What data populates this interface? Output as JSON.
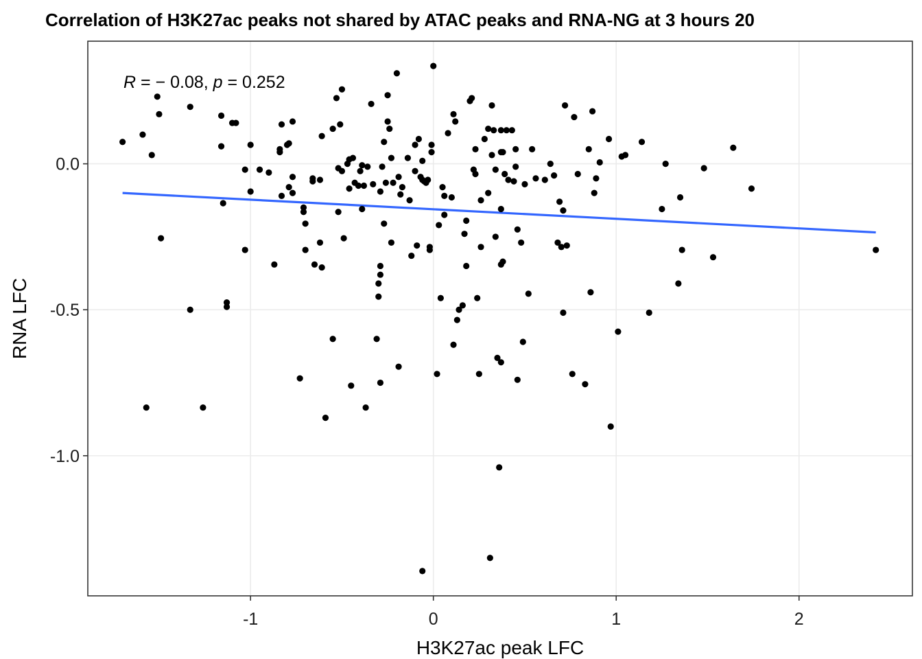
{
  "chart_data": {
    "type": "scatter",
    "title": "Correlation of H3K27ac peaks not shared by ATAC peaks and RNA-NG  at 3 hours 20",
    "xlabel": "H3K27ac peak LFC",
    "ylabel": "RNA LFC",
    "xlim": [
      -1.89,
      2.62
    ],
    "ylim": [
      -1.48,
      0.42
    ],
    "x_ticks": [
      -1,
      0,
      1,
      2
    ],
    "x_tick_labels": [
      "-1",
      "0",
      "1",
      "2"
    ],
    "y_ticks": [
      0.0,
      -0.5,
      -1.0
    ],
    "y_tick_labels": [
      "0.0",
      "-0.5",
      "-1.0"
    ],
    "grid": true,
    "annotation": {
      "r_symbol": "R",
      "r_rest": " = − 0.08, ",
      "p_symbol": "p",
      "p_rest": " = 0.252"
    },
    "trend_line": {
      "x": [
        -1.7,
        2.42
      ],
      "y": [
        -0.1,
        -0.235
      ],
      "color": "#3366FF"
    },
    "point_color": "#000000",
    "points": [
      [
        -1.7,
        0.075
      ],
      [
        -1.59,
        0.1
      ],
      [
        -1.54,
        0.03
      ],
      [
        -1.51,
        0.23
      ],
      [
        -1.5,
        0.17
      ],
      [
        -1.49,
        -0.255
      ],
      [
        -1.57,
        -0.835
      ],
      [
        -1.33,
        0.195
      ],
      [
        -1.33,
        -0.5
      ],
      [
        -1.26,
        -0.835
      ],
      [
        -1.16,
        0.165
      ],
      [
        -1.16,
        0.06
      ],
      [
        -1.15,
        -0.135
      ],
      [
        -1.13,
        -0.475
      ],
      [
        -1.13,
        -0.49
      ],
      [
        -1.1,
        0.14
      ],
      [
        -1.08,
        0.14
      ],
      [
        -1.03,
        -0.02
      ],
      [
        -1.03,
        -0.295
      ],
      [
        -1.0,
        0.065
      ],
      [
        -1.0,
        -0.095
      ],
      [
        -0.95,
        -0.02
      ],
      [
        -0.9,
        -0.03
      ],
      [
        -0.87,
        -0.345
      ],
      [
        -0.84,
        0.04
      ],
      [
        -0.84,
        0.05
      ],
      [
        -0.83,
        0.135
      ],
      [
        -0.83,
        -0.11
      ],
      [
        -0.8,
        0.065
      ],
      [
        -0.79,
        0.07
      ],
      [
        -0.79,
        -0.08
      ],
      [
        -0.77,
        0.145
      ],
      [
        -0.77,
        -0.045
      ],
      [
        -0.77,
        -0.1
      ],
      [
        -0.73,
        -0.735
      ],
      [
        -0.71,
        -0.15
      ],
      [
        -0.71,
        -0.165
      ],
      [
        -0.7,
        -0.205
      ],
      [
        -0.7,
        -0.295
      ],
      [
        -0.66,
        -0.05
      ],
      [
        -0.66,
        -0.06
      ],
      [
        -0.65,
        -0.345
      ],
      [
        -0.62,
        -0.055
      ],
      [
        -0.62,
        -0.27
      ],
      [
        -0.61,
        0.095
      ],
      [
        -0.61,
        -0.355
      ],
      [
        -0.59,
        -0.87
      ],
      [
        -0.55,
        0.12
      ],
      [
        -0.55,
        -0.6
      ],
      [
        -0.53,
        0.225
      ],
      [
        -0.52,
        -0.015
      ],
      [
        -0.52,
        -0.165
      ],
      [
        -0.51,
        0.135
      ],
      [
        -0.5,
        0.255
      ],
      [
        -0.5,
        -0.025
      ],
      [
        -0.49,
        -0.255
      ],
      [
        -0.47,
        0.0
      ],
      [
        -0.46,
        0.015
      ],
      [
        -0.46,
        -0.085
      ],
      [
        -0.45,
        -0.76
      ],
      [
        -0.44,
        0.02
      ],
      [
        -0.43,
        -0.065
      ],
      [
        -0.41,
        -0.075
      ],
      [
        -0.4,
        -0.025
      ],
      [
        -0.39,
        -0.155
      ],
      [
        -0.39,
        -0.005
      ],
      [
        -0.38,
        -0.075
      ],
      [
        -0.37,
        -0.835
      ],
      [
        -0.36,
        -0.01
      ],
      [
        -0.34,
        0.205
      ],
      [
        -0.33,
        -0.07
      ],
      [
        -0.31,
        -0.6
      ],
      [
        -0.3,
        -0.455
      ],
      [
        -0.3,
        -0.41
      ],
      [
        -0.29,
        -0.38
      ],
      [
        -0.29,
        -0.35
      ],
      [
        -0.29,
        -0.095
      ],
      [
        -0.29,
        -0.75
      ],
      [
        -0.28,
        -0.01
      ],
      [
        -0.27,
        0.075
      ],
      [
        -0.27,
        -0.205
      ],
      [
        -0.26,
        -0.065
      ],
      [
        -0.25,
        0.145
      ],
      [
        -0.25,
        0.235
      ],
      [
        -0.24,
        0.12
      ],
      [
        -0.23,
        0.02
      ],
      [
        -0.23,
        -0.27
      ],
      [
        -0.22,
        -0.065
      ],
      [
        -0.2,
        0.31
      ],
      [
        -0.19,
        -0.695
      ],
      [
        -0.19,
        -0.045
      ],
      [
        -0.18,
        -0.105
      ],
      [
        -0.17,
        -0.08
      ],
      [
        -0.14,
        0.02
      ],
      [
        -0.13,
        -0.125
      ],
      [
        -0.12,
        -0.315
      ],
      [
        -0.1,
        0.065
      ],
      [
        -0.1,
        -0.025
      ],
      [
        -0.09,
        -0.28
      ],
      [
        -0.08,
        0.085
      ],
      [
        -0.07,
        -0.045
      ],
      [
        -0.06,
        -0.055
      ],
      [
        -0.06,
        0.01
      ],
      [
        -0.06,
        -1.395
      ],
      [
        -0.05,
        -0.06
      ],
      [
        -0.04,
        -0.065
      ],
      [
        -0.03,
        -0.055
      ],
      [
        -0.02,
        -0.295
      ],
      [
        -0.02,
        -0.285
      ],
      [
        -0.01,
        0.04
      ],
      [
        -0.01,
        0.065
      ],
      [
        -0.0,
        0.335
      ],
      [
        0.02,
        -0.72
      ],
      [
        0.03,
        -0.21
      ],
      [
        0.04,
        -0.46
      ],
      [
        0.05,
        -0.08
      ],
      [
        0.06,
        -0.11
      ],
      [
        0.06,
        -0.175
      ],
      [
        0.08,
        0.105
      ],
      [
        0.1,
        -0.115
      ],
      [
        0.11,
        -0.62
      ],
      [
        0.11,
        0.17
      ],
      [
        0.12,
        0.145
      ],
      [
        0.13,
        -0.535
      ],
      [
        0.14,
        -0.5
      ],
      [
        0.16,
        -0.485
      ],
      [
        0.17,
        -0.24
      ],
      [
        0.18,
        -0.195
      ],
      [
        0.18,
        -0.35
      ],
      [
        0.2,
        0.215
      ],
      [
        0.21,
        0.225
      ],
      [
        0.22,
        -0.02
      ],
      [
        0.23,
        0.05
      ],
      [
        0.23,
        -0.035
      ],
      [
        0.24,
        -0.46
      ],
      [
        0.25,
        -0.72
      ],
      [
        0.26,
        -0.125
      ],
      [
        0.26,
        -0.285
      ],
      [
        0.28,
        0.085
      ],
      [
        0.3,
        0.12
      ],
      [
        0.3,
        -0.1
      ],
      [
        0.31,
        -1.35
      ],
      [
        0.32,
        0.2
      ],
      [
        0.32,
        0.03
      ],
      [
        0.33,
        0.115
      ],
      [
        0.34,
        -0.02
      ],
      [
        0.34,
        -0.25
      ],
      [
        0.35,
        -0.665
      ],
      [
        0.36,
        -1.04
      ],
      [
        0.37,
        -0.68
      ],
      [
        0.37,
        -0.155
      ],
      [
        0.37,
        -0.345
      ],
      [
        0.37,
        0.115
      ],
      [
        0.37,
        0.04
      ],
      [
        0.38,
        -0.335
      ],
      [
        0.38,
        0.04
      ],
      [
        0.39,
        -0.035
      ],
      [
        0.4,
        0.115
      ],
      [
        0.41,
        -0.055
      ],
      [
        0.43,
        0.115
      ],
      [
        0.44,
        -0.06
      ],
      [
        0.45,
        0.05
      ],
      [
        0.45,
        -0.01
      ],
      [
        0.46,
        -0.225
      ],
      [
        0.46,
        -0.74
      ],
      [
        0.48,
        -0.27
      ],
      [
        0.49,
        -0.61
      ],
      [
        0.5,
        -0.07
      ],
      [
        0.52,
        -0.445
      ],
      [
        0.54,
        0.05
      ],
      [
        0.56,
        -0.05
      ],
      [
        0.61,
        -0.055
      ],
      [
        0.64,
        0.0
      ],
      [
        0.66,
        -0.04
      ],
      [
        0.68,
        -0.27
      ],
      [
        0.69,
        -0.13
      ],
      [
        0.7,
        -0.285
      ],
      [
        0.71,
        -0.51
      ],
      [
        0.71,
        -0.16
      ],
      [
        0.72,
        0.2
      ],
      [
        0.73,
        -0.28
      ],
      [
        0.76,
        -0.72
      ],
      [
        0.77,
        0.16
      ],
      [
        0.79,
        -0.035
      ],
      [
        0.83,
        -0.755
      ],
      [
        0.85,
        0.05
      ],
      [
        0.86,
        -0.44
      ],
      [
        0.87,
        0.18
      ],
      [
        0.88,
        -0.1
      ],
      [
        0.89,
        -0.05
      ],
      [
        0.91,
        0.005
      ],
      [
        0.96,
        0.085
      ],
      [
        0.97,
        -0.9
      ],
      [
        1.01,
        -0.575
      ],
      [
        1.03,
        0.025
      ],
      [
        1.05,
        0.03
      ],
      [
        1.14,
        0.075
      ],
      [
        1.18,
        -0.51
      ],
      [
        1.25,
        -0.155
      ],
      [
        1.27,
        0.0
      ],
      [
        1.34,
        -0.41
      ],
      [
        1.35,
        -0.115
      ],
      [
        1.36,
        -0.295
      ],
      [
        1.48,
        -0.015
      ],
      [
        1.53,
        -0.32
      ],
      [
        1.64,
        0.055
      ],
      [
        1.74,
        -0.085
      ],
      [
        2.42,
        -0.295
      ]
    ]
  }
}
